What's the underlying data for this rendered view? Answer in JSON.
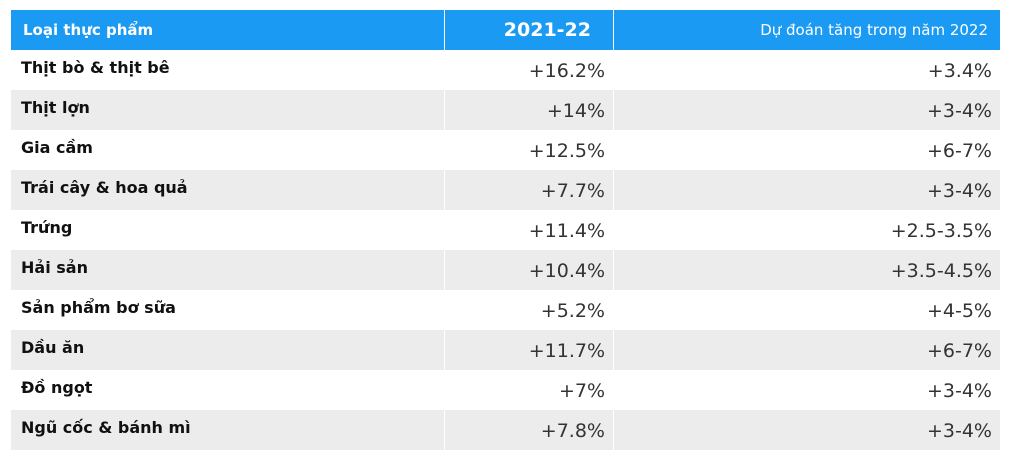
{
  "header": {
    "col1": "Loại thực phẩm",
    "col2": "2021-22",
    "col3": "Dự đoán tăng trong năm 2022"
  },
  "rows": [
    {
      "food": "Thịt bò & thịt bê",
      "change_2021_22": "+16.2%",
      "forecast_2022": "+3.4%"
    },
    {
      "food": "Thịt lợn",
      "change_2021_22": "+14%",
      "forecast_2022": "+3-4%"
    },
    {
      "food": "Gia cầm",
      "change_2021_22": "+12.5%",
      "forecast_2022": "+6-7%"
    },
    {
      "food": "Trái cây & hoa quả",
      "change_2021_22": "+7.7%",
      "forecast_2022": "+3-4%"
    },
    {
      "food": "Trứng",
      "change_2021_22": "+11.4%",
      "forecast_2022": "+2.5-3.5%"
    },
    {
      "food": "Hải sản",
      "change_2021_22": "+10.4%",
      "forecast_2022": "+3.5-4.5%"
    },
    {
      "food": "Sản phẩm bơ sữa",
      "change_2021_22": "+5.2%",
      "forecast_2022": "+4-5%"
    },
    {
      "food": "Dầu ăn",
      "change_2021_22": "+11.7%",
      "forecast_2022": "+6-7%"
    },
    {
      "food": "Đồ ngọt",
      "change_2021_22": "+7%",
      "forecast_2022": "+3-4%"
    },
    {
      "food": "Ngũ cốc & bánh mì",
      "change_2021_22": "+7.8%",
      "forecast_2022": "+3-4%"
    }
  ],
  "colors": {
    "header_bg": "#1a9af3",
    "alt_row_bg": "#ececec"
  }
}
